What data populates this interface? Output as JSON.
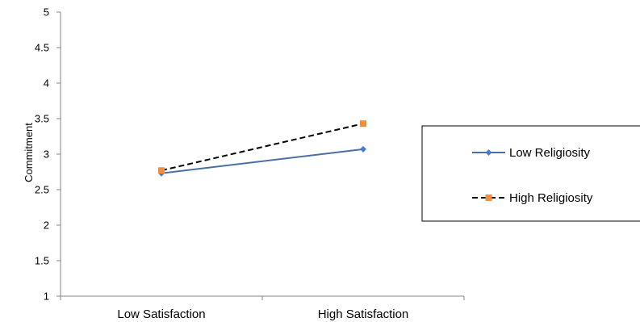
{
  "chart_data": {
    "type": "line",
    "categories": [
      "Low Satisfaction",
      "High Satisfaction"
    ],
    "series": [
      {
        "name": "Low Religiosity",
        "values": [
          2.73,
          3.07
        ],
        "color": "#4a6fa5",
        "line_style": "solid",
        "marker": "diamond",
        "marker_color": "#4a7bd0"
      },
      {
        "name": "High Religiosity",
        "values": [
          2.77,
          3.43
        ],
        "color": "#000000",
        "line_style": "dashed",
        "marker": "square",
        "marker_color": "#f28e3c"
      }
    ],
    "title": "",
    "xlabel": "",
    "ylabel": "Commitment",
    "ylim": [
      1,
      5
    ],
    "yticks": [
      "1",
      "1.5",
      "2",
      "2.5",
      "3",
      "3.5",
      "4",
      "4.5",
      "5"
    ],
    "grid": false,
    "legend_position": "right"
  }
}
